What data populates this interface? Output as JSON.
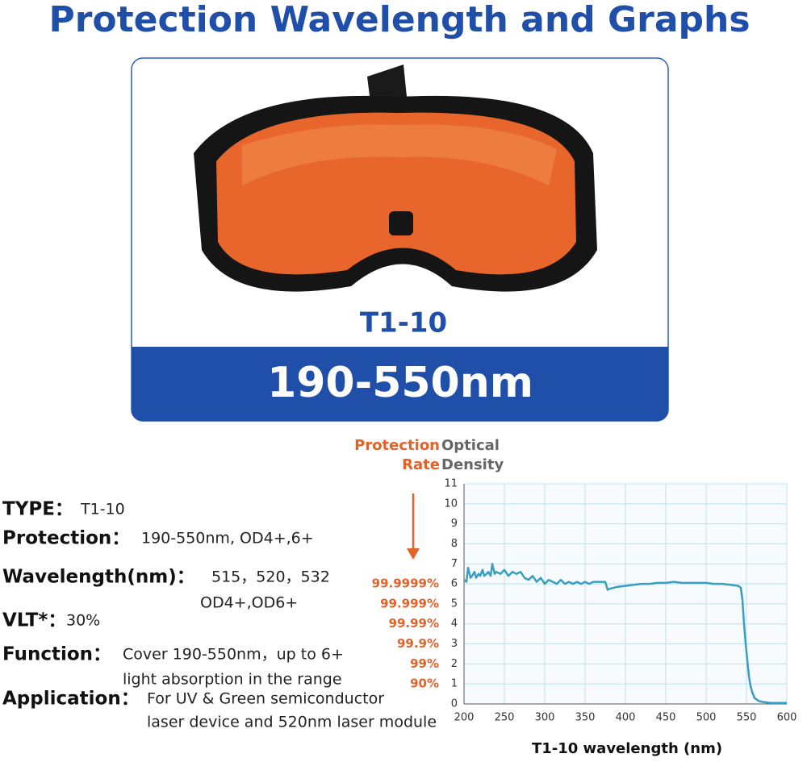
{
  "header": {
    "title": "Protection Wavelength and Graphs"
  },
  "product": {
    "model": "T1-10",
    "range": "190-550nm"
  },
  "specs": [
    {
      "label": "TYPE：",
      "lines": [
        "T1-10"
      ]
    },
    {
      "label": "Protection：",
      "lines": [
        "190-550nm, OD4+,6+"
      ]
    },
    {
      "label": "Wavelength(nm)：",
      "lines": [
        "515，520，532",
        "OD4+,OD6+"
      ]
    },
    {
      "label": "VLT*：",
      "lines": [
        "30%"
      ]
    },
    {
      "label": "Function：",
      "lines": [
        "Cover 190-550nm，up to 6+",
        "light absorption in the range"
      ]
    },
    {
      "label": "Application：",
      "lines": [
        "For UV & Green semiconductor",
        "laser device and 520nm laser module"
      ]
    }
  ],
  "chart_data": {
    "type": "line",
    "y_label": [
      "Optical",
      "Density"
    ],
    "rate_label": [
      "Protection",
      "Rate"
    ],
    "x_label": "T1-10 wavelength (nm)",
    "color": "#3a9ec0",
    "grid": true,
    "xlim": [
      200,
      600
    ],
    "xticks": [
      200,
      250,
      300,
      350,
      400,
      450,
      500,
      550,
      600
    ],
    "ylim": [
      0,
      11
    ],
    "yticks": [
      0,
      1,
      2,
      3,
      4,
      5,
      6,
      7,
      8,
      9,
      10,
      11
    ],
    "rate_ticks": [
      {
        "value": 6,
        "label": "99.9999%"
      },
      {
        "value": 5,
        "label": "99.999%"
      },
      {
        "value": 4,
        "label": "99.99%"
      },
      {
        "value": 3,
        "label": "99.9%"
      },
      {
        "value": 2,
        "label": "99%"
      },
      {
        "value": 1,
        "label": "90%"
      }
    ],
    "x": [
      200,
      203,
      205,
      208,
      210,
      213,
      215,
      218,
      220,
      223,
      225,
      228,
      230,
      233,
      235,
      238,
      240,
      245,
      250,
      255,
      260,
      265,
      270,
      275,
      280,
      285,
      290,
      295,
      300,
      305,
      310,
      315,
      320,
      325,
      330,
      335,
      340,
      345,
      350,
      355,
      360,
      365,
      370,
      375,
      378,
      380,
      390,
      400,
      410,
      420,
      430,
      440,
      450,
      460,
      470,
      480,
      490,
      500,
      510,
      520,
      530,
      540,
      543,
      545,
      547,
      549,
      551,
      553,
      555,
      557,
      560,
      565,
      570,
      580,
      590,
      600
    ],
    "values": [
      6.2,
      6.1,
      6.8,
      6.3,
      6.4,
      6.6,
      6.3,
      6.5,
      6.4,
      6.7,
      6.4,
      6.5,
      6.6,
      6.4,
      7.0,
      6.5,
      6.6,
      6.5,
      6.7,
      6.4,
      6.6,
      6.5,
      6.6,
      6.3,
      6.2,
      6.4,
      6.1,
      6.3,
      6.0,
      6.2,
      6.1,
      6.0,
      6.2,
      6.0,
      6.1,
      6.0,
      6.1,
      6.0,
      6.1,
      6.0,
      6.1,
      6.1,
      6.1,
      6.1,
      5.7,
      5.75,
      5.85,
      5.9,
      5.95,
      6.0,
      6.0,
      6.05,
      6.05,
      6.1,
      6.05,
      6.05,
      6.05,
      6.05,
      6.0,
      6.0,
      5.95,
      5.9,
      5.8,
      5.2,
      4.0,
      3.0,
      2.2,
      1.4,
      0.9,
      0.6,
      0.3,
      0.15,
      0.1,
      0.05,
      0.05,
      0.05
    ]
  }
}
